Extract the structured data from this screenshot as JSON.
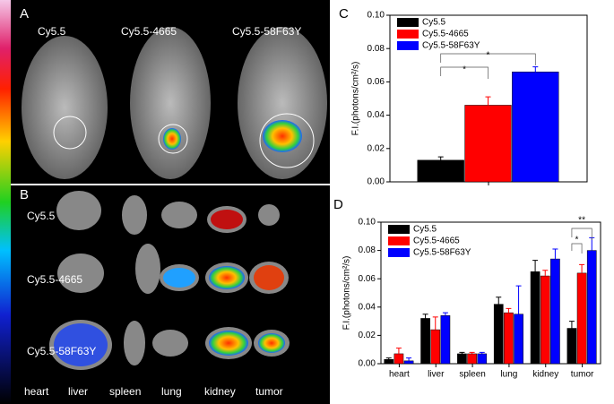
{
  "image_panel": {
    "panel_a": "A",
    "panel_b": "B",
    "top_labels": [
      "Cy5.5",
      "Cy5.5-4665",
      "Cy5.5-58F63Y"
    ],
    "row_labels": [
      "Cy5.5",
      "Cy5.5-4665",
      "Cy5.5-58F63Y"
    ],
    "organ_labels": [
      "heart",
      "liver",
      "spleen",
      "lung",
      "kidney",
      "tumor"
    ]
  },
  "chart_data": [
    {
      "type": "bar",
      "panel": "C",
      "ylabel": "F.I.(photons/cm²/s)",
      "categories": [
        null
      ],
      "series": [
        {
          "name": "Cy5.5",
          "color": "#000000",
          "values": [
            0.013
          ],
          "errors": [
            0.002
          ]
        },
        {
          "name": "Cy5.5-4665",
          "color": "#ff0000",
          "values": [
            0.046
          ],
          "errors": [
            0.005
          ]
        },
        {
          "name": "Cy5.5-58F63Y",
          "color": "#0000ff",
          "values": [
            0.066
          ],
          "errors": [
            0.003
          ]
        }
      ],
      "ylim": [
        0,
        0.1
      ],
      "yticks": [
        {
          "value": 0,
          "label": "0.00"
        },
        {
          "value": 0.02,
          "label": "0.02"
        },
        {
          "value": 0.04,
          "label": "0.04"
        },
        {
          "value": 0.06,
          "label": "0.06"
        },
        {
          "value": 0.08,
          "label": "0.08"
        },
        {
          "value": 0.1,
          "label": "0.10"
        }
      ],
      "legend": "upper left",
      "annotations": [
        "*",
        "*"
      ]
    },
    {
      "type": "bar",
      "panel": "D",
      "ylabel": "F.I.(photons/cm²/s)",
      "categories": [
        "heart",
        "liver",
        "spleen",
        "lung",
        "kidney",
        "tumor"
      ],
      "series": [
        {
          "name": "Cy5.5",
          "color": "#000000",
          "values": [
            0.003,
            0.032,
            0.007,
            0.042,
            0.065,
            0.025
          ],
          "errors": [
            0.001,
            0.003,
            0.001,
            0.005,
            0.008,
            0.005
          ]
        },
        {
          "name": "Cy5.5-4665",
          "color": "#ff0000",
          "values": [
            0.007,
            0.024,
            0.007,
            0.036,
            0.062,
            0.064
          ],
          "errors": [
            0.004,
            0.009,
            0.001,
            0.003,
            0.004,
            0.006
          ]
        },
        {
          "name": "Cy5.5-58F63Y",
          "color": "#0000ff",
          "values": [
            0.002,
            0.034,
            0.007,
            0.035,
            0.074,
            0.08
          ],
          "errors": [
            0.002,
            0.002,
            0.001,
            0.02,
            0.007,
            0.009
          ]
        }
      ],
      "ylim": [
        0,
        0.1
      ],
      "yticks": [
        {
          "value": 0,
          "label": "0.00"
        },
        {
          "value": 0.02,
          "label": "0.02"
        },
        {
          "value": 0.04,
          "label": "0.04"
        },
        {
          "value": 0.06,
          "label": "0.06"
        },
        {
          "value": 0.08,
          "label": "0.08"
        },
        {
          "value": 0.1,
          "label": "0.10"
        }
      ],
      "legend": "upper left",
      "annotations": [
        "*",
        "**"
      ]
    }
  ]
}
